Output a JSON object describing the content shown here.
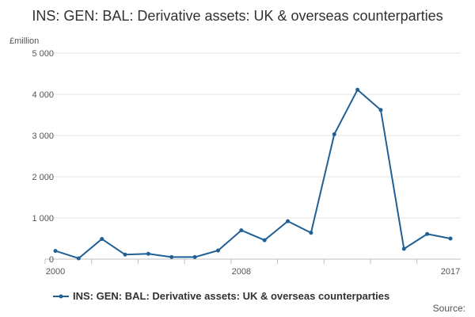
{
  "chart_data": {
    "type": "line",
    "title": "INS: GEN: BAL: Derivative assets: UK & overseas counterparties",
    "ylabel": "£million",
    "xlabel": "",
    "x": [
      2000,
      2001,
      2002,
      2003,
      2004,
      2005,
      2006,
      2007,
      2008,
      2009,
      2010,
      2011,
      2012,
      2013,
      2014,
      2015,
      2016,
      2017
    ],
    "x_tick_labels": [
      "2000",
      "2008",
      "2017"
    ],
    "x_tick_values": [
      2000,
      2008,
      2017
    ],
    "y_tick_labels": [
      "0",
      "1 000",
      "2 000",
      "3 000",
      "4 000",
      "5 000"
    ],
    "y_tick_values": [
      0,
      1000,
      2000,
      3000,
      4000,
      5000
    ],
    "ylim": [
      0,
      5000
    ],
    "xlim": [
      2000,
      2017
    ],
    "grid": true,
    "legend_position": "bottom-left",
    "series": [
      {
        "name": "INS: GEN: BAL: Derivative assets: UK & overseas counterparties",
        "color": "#206095",
        "values": [
          200,
          20,
          490,
          110,
          130,
          50,
          50,
          210,
          700,
          460,
          920,
          640,
          3030,
          4110,
          3620,
          250,
          610,
          500
        ]
      }
    ],
    "source_label": "Source:"
  }
}
